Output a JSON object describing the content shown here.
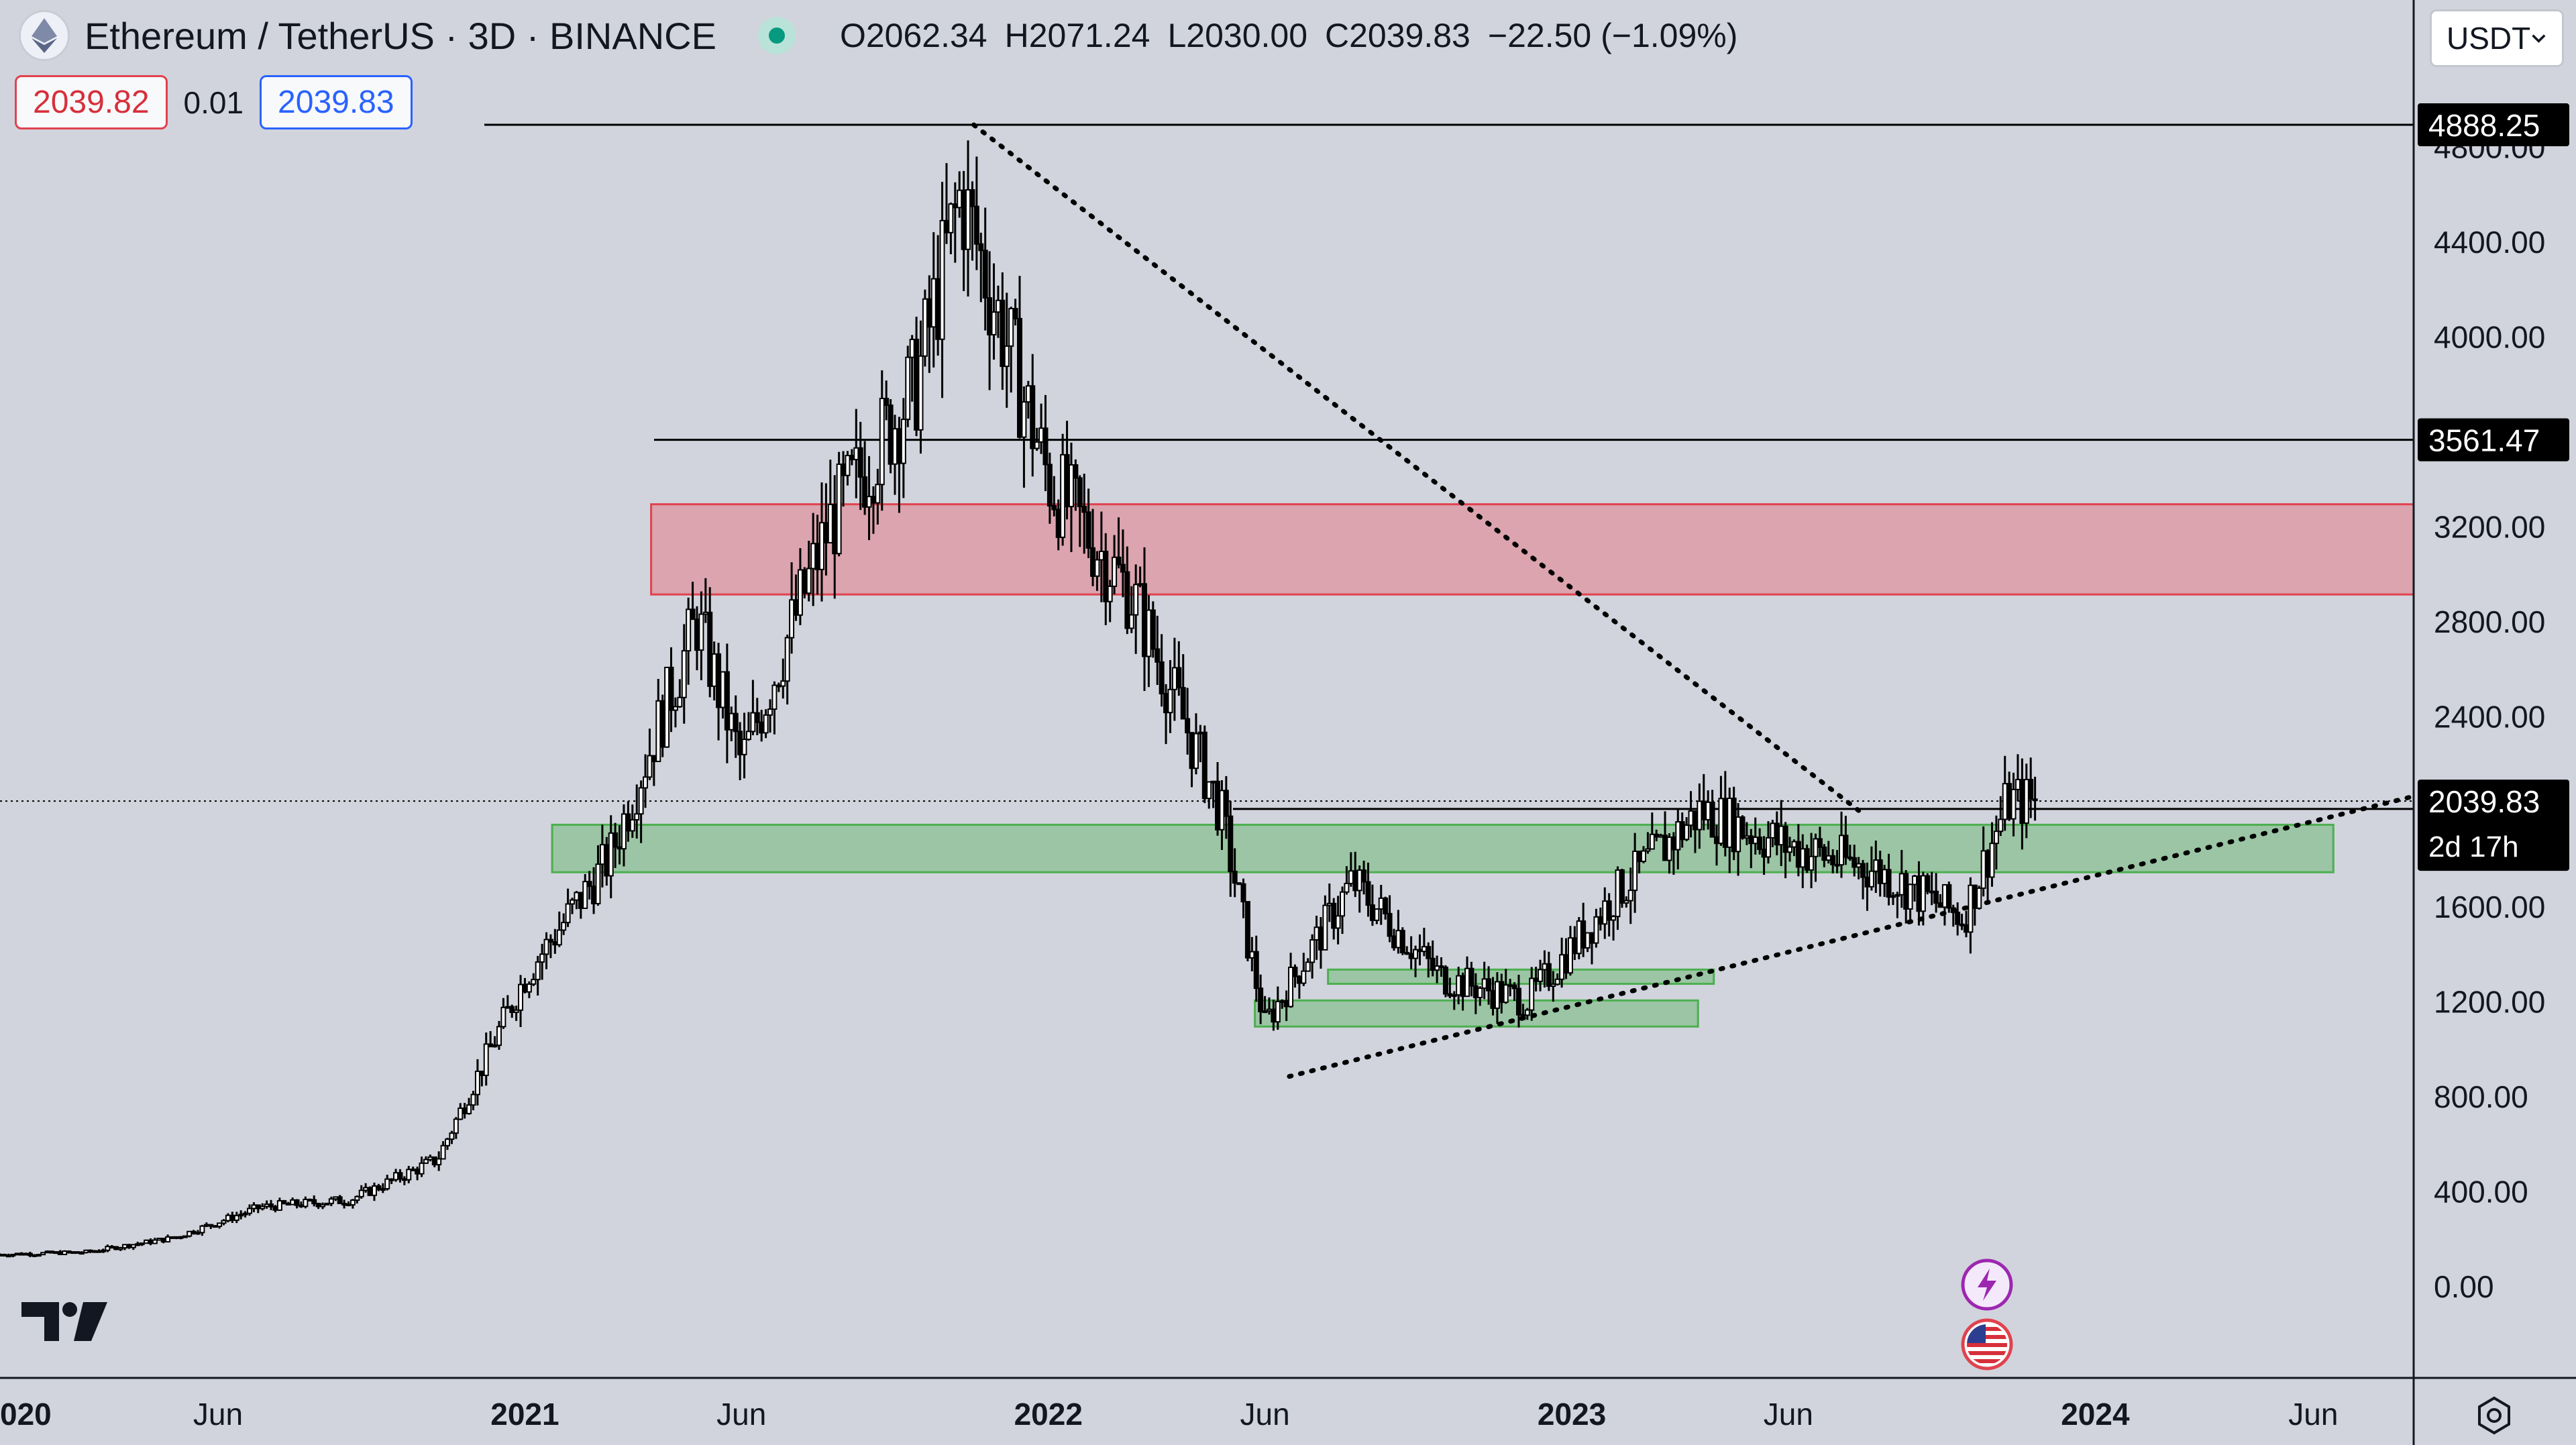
{
  "header": {
    "symbol": "Ethereum / TetherUS · 3D · BINANCE",
    "open_key": "O",
    "open": "2062.34",
    "high_key": "H",
    "high": "2071.24",
    "low_key": "L",
    "low": "2030.00",
    "close_key": "C",
    "close": "2039.83",
    "change": "−22.50 (−1.09%)"
  },
  "bid": "2039.82",
  "spread": "0.01",
  "ask": "2039.83",
  "currency": "USDT",
  "price_tags": {
    "high_line": "4888.25",
    "resistance": "3561.47",
    "last_price": "2039.83",
    "countdown": "2d 17h",
    "support": "2006.41"
  },
  "icons": {
    "logo": "tradingview-logo",
    "lightning": "lightning-icon",
    "flag": "us-flag-icon",
    "settings": "gear-icon",
    "dropdown": "chevron-down-icon"
  },
  "colors": {
    "background": "#d1d4dc",
    "candle": "#000000",
    "red_zone": "#e8909c",
    "green_zone": "#8fd19e",
    "ask": "#2962ff",
    "bid": "#d6303b"
  },
  "chart_data": {
    "type": "candlestick",
    "title": "Ethereum / TetherUS · 3D · BINANCE",
    "xlabel": "",
    "ylabel": "",
    "x_ticks": [
      "020",
      "Jun",
      "2021",
      "Jun",
      "2022",
      "Jun",
      "2023",
      "Jun",
      "2024",
      "Jun"
    ],
    "y_ticks": [
      "4800.00",
      "4400.00",
      "4000.00",
      "3200.00",
      "2800.00",
      "2400.00",
      "1600.00",
      "1200.00",
      "800.00",
      "400.00",
      "0.00"
    ],
    "x_range": [
      "2020-01-01",
      "2024-08-10"
    ],
    "y_range": [
      -400,
      5000
    ],
    "grid": false,
    "series": [
      {
        "x": [
          "2020-01",
          "2020-03",
          "2020-05",
          "2020-07",
          "2020-09",
          "2020-11",
          "2021-01",
          "2021-03",
          "2021-05",
          "2021-06",
          "2021-08",
          "2021-10",
          "2021-11",
          "2022-01",
          "2022-03",
          "2022-05",
          "2022-06",
          "2022-08",
          "2022-10",
          "2022-12",
          "2023-02",
          "2023-04",
          "2023-06",
          "2023-08",
          "2023-10",
          "2023-11"
        ],
        "close": [
          130,
          140,
          200,
          330,
          360,
          530,
          1300,
          1800,
          2800,
          2200,
          3200,
          3800,
          4600,
          3400,
          2900,
          2000,
          1100,
          1700,
          1300,
          1200,
          1650,
          2000,
          1850,
          1750,
          1550,
          2039.83
        ]
      }
    ],
    "levels": [
      {
        "price": 4888.25,
        "style": "solid"
      },
      {
        "price": 3561.47,
        "style": "solid"
      },
      {
        "price": 2039.83,
        "style": "dotted"
      },
      {
        "price": 2006.41,
        "style": "solid"
      }
    ],
    "zones": [
      {
        "color": "red",
        "from": "2021-03-30",
        "to": "2024-08-10",
        "low": 2910,
        "high": 3290
      },
      {
        "color": "green",
        "from": "2021-01-20",
        "to": "2024-06-15",
        "low": 1740,
        "high": 1940
      },
      {
        "color": "green",
        "from": "2022-07-15",
        "to": "2023-04-10",
        "low": 1270,
        "high": 1330
      },
      {
        "color": "green",
        "from": "2022-05-25",
        "to": "2023-03-30",
        "low": 1090,
        "high": 1200
      }
    ],
    "trendlines": [
      {
        "from_date": "2021-11-10",
        "from_price": 4888,
        "to_date": "2023-07-20",
        "to_price": 2000,
        "style": "dotted"
      },
      {
        "from_date": "2022-06-18",
        "from_price": 880,
        "to_date": "2024-08-10",
        "to_price": 2060,
        "style": "dotted"
      }
    ]
  }
}
